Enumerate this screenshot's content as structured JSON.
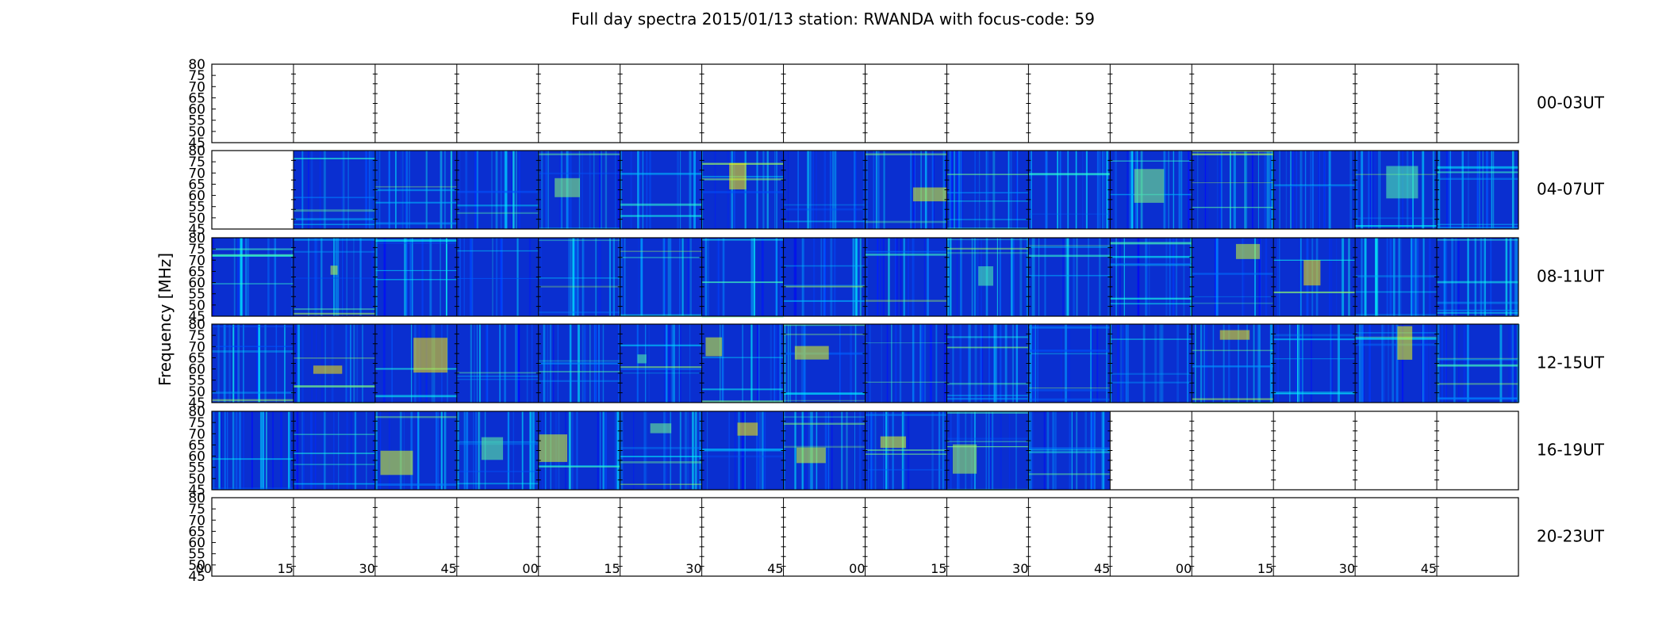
{
  "chart_data": {
    "type": "heatmap",
    "title": "Full day spectra 2015/01/13 station: RWANDA with focus-code: 59",
    "ylabel": "Frequency [MHz]",
    "xlabel": "",
    "ylim": [
      45,
      80
    ],
    "yticks": [
      45,
      50,
      55,
      60,
      65,
      70,
      75,
      80
    ],
    "xticks": [
      "00",
      "15",
      "30",
      "45",
      "00",
      "15",
      "30",
      "45",
      "00",
      "15",
      "30",
      "45",
      "00",
      "15",
      "30",
      "45"
    ],
    "colormap": "jet",
    "colors": {
      "low": "#00007f",
      "background": "#0a2fd0",
      "mid": "#33ccff",
      "high_mid": "#b3ff4d",
      "high": "#ff3300",
      "max": "#800000"
    },
    "grid": false,
    "legend": "none",
    "rows": [
      {
        "label": "00-03UT",
        "segments": [
          0,
          0,
          0,
          0,
          0,
          0,
          0,
          0,
          0,
          0,
          0,
          0,
          0,
          0,
          0,
          0
        ]
      },
      {
        "label": "04-07UT",
        "segments": [
          0,
          1,
          1,
          1,
          1,
          1,
          1,
          1,
          1,
          1,
          1,
          1,
          1,
          1,
          1,
          1
        ]
      },
      {
        "label": "08-11UT",
        "segments": [
          1,
          1,
          1,
          1,
          1,
          1,
          1,
          1,
          1,
          1,
          1,
          1,
          1,
          1,
          1,
          1
        ]
      },
      {
        "label": "12-15UT",
        "segments": [
          1,
          1,
          1,
          1,
          1,
          1,
          1,
          1,
          1,
          1,
          1,
          1,
          1,
          1,
          1,
          1
        ]
      },
      {
        "label": "16-19UT",
        "segments": [
          1,
          1,
          1,
          1,
          1,
          1,
          1,
          1,
          1,
          1,
          1,
          0,
          0,
          0,
          0,
          0
        ]
      },
      {
        "label": "20-23UT",
        "segments": [
          0,
          0,
          0,
          0,
          0,
          0,
          0,
          0,
          0,
          0,
          0,
          0,
          0,
          0,
          0,
          0
        ]
      }
    ]
  }
}
